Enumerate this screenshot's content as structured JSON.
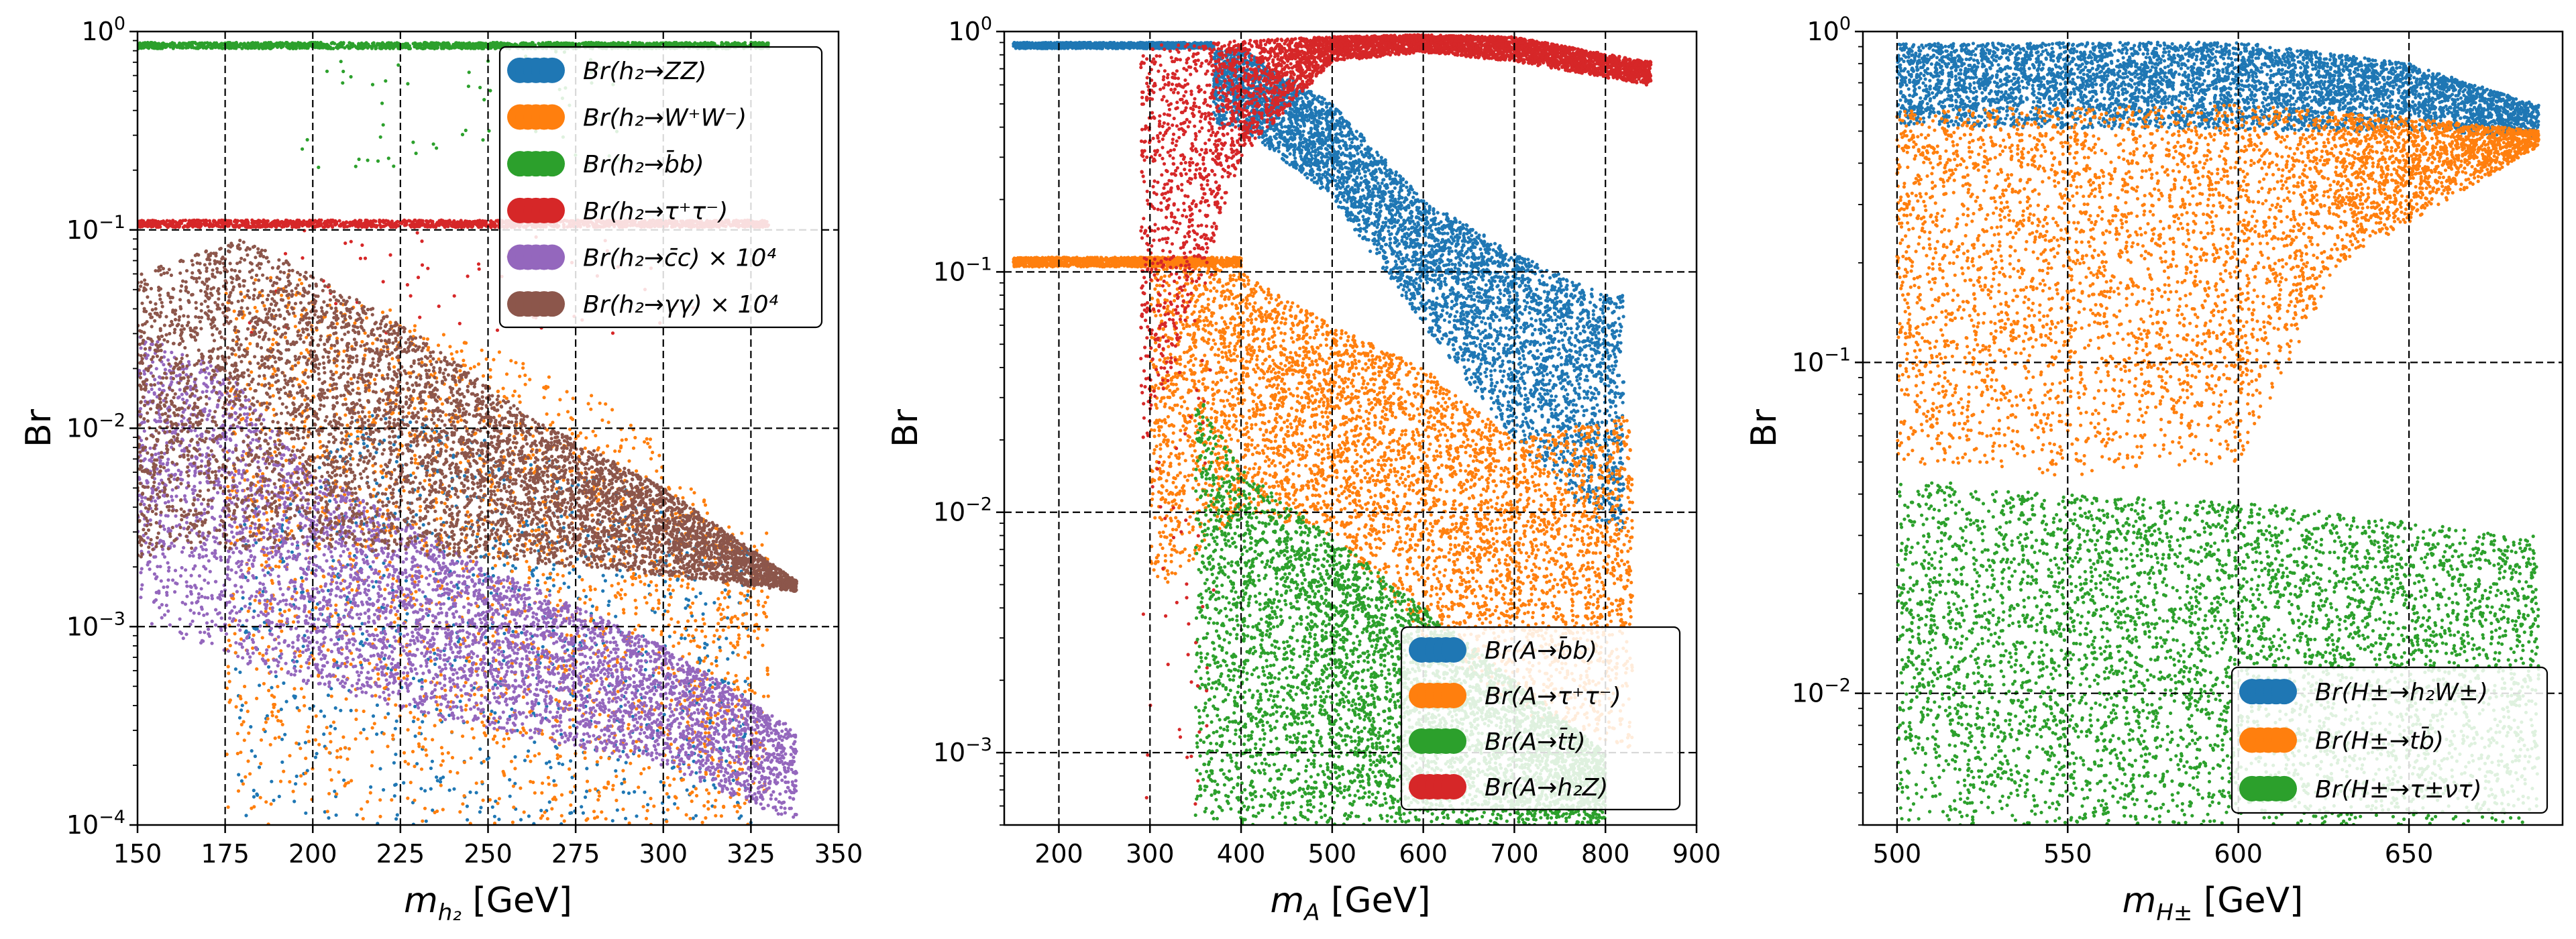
{
  "colors": {
    "blue": "#1f77b4",
    "orange": "#ff7f0e",
    "green": "#2ca02c",
    "red": "#d62728",
    "purple": "#9467bd",
    "brown": "#8c564b"
  },
  "chart_data": [
    {
      "type": "scatter",
      "yscale": "log",
      "xlim": [
        150,
        350
      ],
      "ylim": [
        0.0001,
        1
      ],
      "grid": true,
      "grid_style": "dashed",
      "ylabel": "Br",
      "xlabel_base": "m",
      "xlabel_sub": "h₂",
      "xlabel_unit": " [GeV]",
      "xticks": [
        150,
        175,
        200,
        225,
        250,
        275,
        300,
        325,
        350
      ],
      "xtick_labels": [
        "150",
        "175",
        "200",
        "225",
        "250",
        "275",
        "300",
        "325",
        "350"
      ],
      "yticks": [
        0.0001,
        0.001,
        0.01,
        0.1,
        1
      ],
      "ytick_labels": [
        [
          "10",
          "−4"
        ],
        [
          "10",
          "−3"
        ],
        [
          "10",
          "−2"
        ],
        [
          "10",
          "−1"
        ],
        [
          "10",
          "0"
        ]
      ],
      "legend_position": "upper right",
      "legend_entries": [
        "Br(h₂→ZZ)",
        "Br(h₂→W⁺W⁻)",
        "Br(h₂→b̄b)",
        "Br(h₂→τ⁺τ⁻)",
        "Br(h₂→c̄c) × 10⁴",
        "Br(h₂→γγ) × 10⁴"
      ],
      "series": [
        {
          "name": "Br(h₂→ZZ)",
          "color": "#1f77b4",
          "points_count": 900,
          "region": {
            "x": [
              178,
              325
            ],
            "upper": [
              [
                180,
                0.0035
              ],
              [
                215,
                0.012
              ],
              [
                250,
                0.009
              ],
              [
                290,
                0.005
              ],
              [
                315,
                0.0025
              ]
            ],
            "lower": 0.0001
          }
        },
        {
          "name": "Br(h₂→W⁺W⁻)",
          "color": "#ff7f0e",
          "points_count": 2200,
          "region": {
            "x": [
              175,
              330
            ],
            "upper": [
              [
                180,
                0.06
              ],
              [
                200,
                0.06
              ],
              [
                230,
                0.035
              ],
              [
                260,
                0.022
              ],
              [
                290,
                0.012
              ],
              [
                305,
                0.006
              ],
              [
                320,
                0.003
              ]
            ],
            "lower": 0.0001
          }
        },
        {
          "name": "Br(h₂→b̄b)",
          "color": "#2ca02c",
          "band": {
            "x": [
              150,
              330
            ],
            "y": [
              0.82,
              0.88
            ]
          },
          "scatter_extra": {
            "x": [
              195,
              290
            ],
            "y": [
              0.2,
              0.8
            ]
          }
        },
        {
          "name": "Br(h₂→τ⁺τ⁻)",
          "color": "#d62728",
          "band": {
            "x": [
              150,
              330
            ],
            "y": [
              0.103,
              0.112
            ]
          },
          "scatter_extra": {
            "x": [
              180,
              310
            ],
            "y": [
              0.03,
              0.1
            ]
          }
        },
        {
          "name": "Br(h₂→c̄c) × 10⁴",
          "color": "#9467bd",
          "points_count": 5000,
          "region": {
            "x": [
              150,
              338
            ],
            "upper": [
              [
                150,
                0.03
              ],
              [
                175,
                0.02
              ],
              [
                200,
                0.006
              ],
              [
                250,
                0.002
              ],
              [
                300,
                0.0008
              ],
              [
                338,
                0.0003
              ]
            ],
            "lower_curve": [
              [
                150,
                0.001
              ],
              [
                200,
                0.0005
              ],
              [
                250,
                0.0003
              ],
              [
                300,
                0.0002
              ],
              [
                338,
                0.0001
              ]
            ]
          }
        },
        {
          "name": "Br(h₂→γγ) × 10⁴",
          "color": "#8c564b",
          "points_count": 6000,
          "region": {
            "x": [
              150,
              338
            ],
            "upper": [
              [
                150,
                0.06
              ],
              [
                180,
                0.09
              ],
              [
                200,
                0.06
              ],
              [
                230,
                0.03
              ],
              [
                260,
                0.012
              ],
              [
                300,
                0.005
              ],
              [
                338,
                0.0017
              ]
            ],
            "lower_curve": [
              [
                150,
                0.0022
              ],
              [
                200,
                0.0025
              ],
              [
                250,
                0.0022
              ],
              [
                300,
                0.0018
              ],
              [
                338,
                0.0015
              ]
            ]
          }
        }
      ]
    },
    {
      "type": "scatter",
      "yscale": "log",
      "xlim": [
        140,
        900
      ],
      "ylim": [
        0.0005,
        1
      ],
      "grid": true,
      "grid_style": "dashed",
      "ylabel": "Br",
      "xlabel_base": "m",
      "xlabel_sub": "A",
      "xlabel_unit": " [GeV]",
      "xticks": [
        200,
        300,
        400,
        500,
        600,
        700,
        800,
        900
      ],
      "xtick_labels": [
        "200",
        "300",
        "400",
        "500",
        "600",
        "700",
        "800",
        "900"
      ],
      "yticks": [
        0.001,
        0.01,
        0.1,
        1
      ],
      "ytick_labels": [
        [
          "10",
          "−3"
        ],
        [
          "10",
          "−2"
        ],
        [
          "10",
          "−1"
        ],
        [
          "10",
          "0"
        ]
      ],
      "legend_position": "lower right",
      "legend_entries": [
        "Br(A→b̄b)",
        "Br(A→τ⁺τ⁻)",
        "Br(A→t̄t)",
        "Br(A→h₂Z)"
      ],
      "series": [
        {
          "name": "Br(A→b̄b)",
          "color": "#1f77b4",
          "band_low_mass": {
            "x": [
              150,
              370
            ],
            "y": [
              0.85,
              0.9
            ]
          },
          "region": {
            "x": [
              370,
              820
            ],
            "upper": [
              [
                400,
                0.85
              ],
              [
                500,
                0.5
              ],
              [
                600,
                0.2
              ],
              [
                700,
                0.12
              ],
              [
                800,
                0.08
              ]
            ],
            "lower_curve": [
              [
                400,
                0.4
              ],
              [
                500,
                0.2
              ],
              [
                600,
                0.06
              ],
              [
                700,
                0.02
              ],
              [
                800,
                0.008
              ]
            ]
          }
        },
        {
          "name": "Br(A→τ⁺τ⁻)",
          "color": "#ff7f0e",
          "band_low_mass": {
            "x": [
              150,
              400
            ],
            "y": [
              0.105,
              0.115
            ]
          },
          "region": {
            "x": [
              300,
              830
            ],
            "upper": [
              [
                320,
                0.11
              ],
              [
                400,
                0.1
              ],
              [
                500,
                0.06
              ],
              [
                600,
                0.04
              ],
              [
                700,
                0.02
              ],
              [
                820,
                0.025
              ]
            ],
            "lower_curve": [
              [
                320,
                0.005
              ],
              [
                400,
                0.01
              ],
              [
                500,
                0.008
              ],
              [
                600,
                0.003
              ],
              [
                700,
                0.0015
              ],
              [
                820,
                0.001
              ]
            ]
          }
        },
        {
          "name": "Br(A→t̄t)",
          "color": "#2ca02c",
          "region": {
            "x": [
              350,
              800
            ],
            "upper": [
              [
                355,
                0.03
              ],
              [
                400,
                0.015
              ],
              [
                500,
                0.008
              ],
              [
                600,
                0.004
              ],
              [
                700,
                0.002
              ],
              [
                800,
                0.001
              ]
            ],
            "lower": 0.0005
          }
        },
        {
          "name": "Br(A→h₂Z)",
          "color": "#d62728",
          "region": {
            "x": [
              290,
              850
            ],
            "upper": [
              [
                350,
                0.9
              ],
              [
                500,
                0.95
              ],
              [
                600,
                0.97
              ],
              [
                700,
                0.95
              ],
              [
                845,
                0.75
              ]
            ],
            "lower_curve": [
              [
                300,
                0.02
              ],
              [
                400,
                0.3
              ],
              [
                500,
                0.75
              ],
              [
                600,
                0.82
              ],
              [
                700,
                0.75
              ],
              [
                845,
                0.6
              ]
            ]
          },
          "scatter_extra": {
            "x": [
              290,
              370
            ],
            "y": [
              0.0006,
              0.1
            ]
          }
        }
      ]
    },
    {
      "type": "scatter",
      "yscale": "log",
      "xlim": [
        490,
        695
      ],
      "ylim": [
        0.004,
        1
      ],
      "grid": true,
      "grid_style": "dashed",
      "ylabel": "Br",
      "xlabel_base": "m",
      "xlabel_sub": "H±",
      "xlabel_unit": " [GeV]",
      "xticks": [
        500,
        550,
        600,
        650
      ],
      "xtick_labels": [
        "500",
        "550",
        "600",
        "650"
      ],
      "yticks": [
        0.01,
        0.1,
        1
      ],
      "ytick_labels": [
        [
          "10",
          "−2"
        ],
        [
          "10",
          "−1"
        ],
        [
          "10",
          "0"
        ]
      ],
      "legend_position": "lower right",
      "legend_entries": [
        "Br(H±→h₂W±)",
        "Br(H±→tb̄)",
        "Br(H±→τ±ντ)"
      ],
      "series": [
        {
          "name": "Br(H±→h₂W±)",
          "color": "#1f77b4",
          "region": {
            "x": [
              500,
              688
            ],
            "upper": [
              [
                500,
                0.92
              ],
              [
                600,
                0.93
              ],
              [
                650,
                0.8
              ],
              [
                688,
                0.6
              ]
            ],
            "lower_curve": [
              [
                500,
                0.52
              ],
              [
                600,
                0.5
              ],
              [
                650,
                0.5
              ],
              [
                688,
                0.48
              ]
            ]
          }
        },
        {
          "name": "Br(H±→tb̄)",
          "color": "#ff7f0e",
          "region": {
            "x": [
              500,
              688
            ],
            "upper": [
              [
                500,
                0.58
              ],
              [
                600,
                0.6
              ],
              [
                650,
                0.55
              ],
              [
                688,
                0.5
              ]
            ],
            "lower_curve": [
              [
                500,
                0.05
              ],
              [
                550,
                0.045
              ],
              [
                600,
                0.05
              ],
              [
                630,
                0.2
              ],
              [
                688,
                0.45
              ]
            ]
          }
        },
        {
          "name": "Br(H±→τ±ντ)",
          "color": "#2ca02c",
          "region": {
            "x": [
              500,
              688
            ],
            "upper": [
              [
                500,
                0.045
              ],
              [
                550,
                0.04
              ],
              [
                600,
                0.038
              ],
              [
                650,
                0.033
              ],
              [
                688,
                0.03
              ]
            ],
            "lower": 0.004
          }
        }
      ]
    }
  ]
}
